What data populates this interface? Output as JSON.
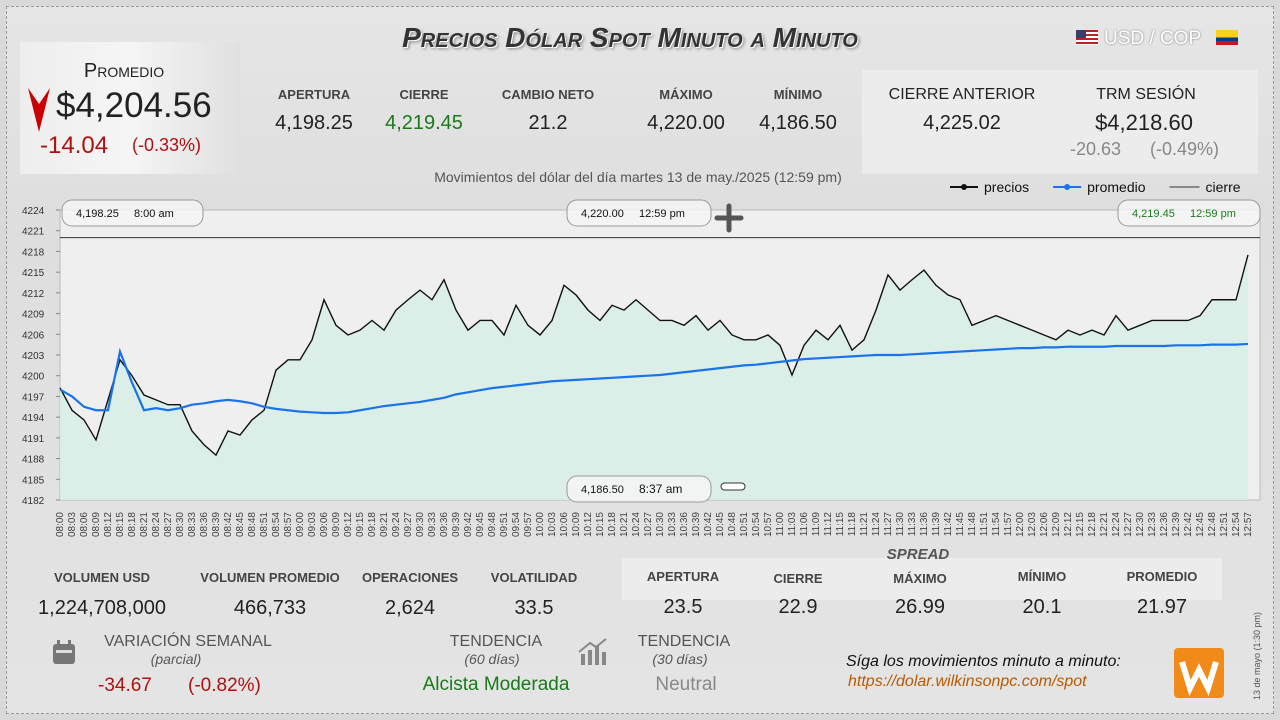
{
  "header": {
    "title": "Precios Dólar Spot Minuto a Minuto",
    "pair": "USD / COP"
  },
  "promedio": {
    "label": "Promedio",
    "value": "$4,204.56",
    "change": "-14.04",
    "change_pct": "(-0.33%)"
  },
  "stats": [
    {
      "label": "APERTURA",
      "value": "4,198.25"
    },
    {
      "label": "CIERRE",
      "value": "4,219.45"
    },
    {
      "label": "CAMBIO NETO",
      "value": "21.2"
    },
    {
      "label": "MÁXIMO",
      "value": "4,220.00"
    },
    {
      "label": "MÍNIMO",
      "value": "4,186.50"
    }
  ],
  "previous": {
    "label": "CIERRE ANTERIOR",
    "value": "4,225.02"
  },
  "trm": {
    "label": "TRM SESIÓN",
    "value": "$4,218.60",
    "change": "-20.63",
    "change_pct": "(-0.49%)"
  },
  "chart_data": {
    "type": "line",
    "title": "Movimientos del dólar del día martes 13 de may./2025 (12:59 pm)",
    "x": [
      "08:00",
      "08:03",
      "08:06",
      "08:09",
      "08:12",
      "08:15",
      "08:18",
      "08:21",
      "08:24",
      "08:27",
      "08:30",
      "08:33",
      "08:36",
      "08:39",
      "08:42",
      "08:45",
      "08:48",
      "08:51",
      "08:54",
      "08:57",
      "09:00",
      "09:03",
      "09:06",
      "09:09",
      "09:12",
      "09:15",
      "09:18",
      "09:21",
      "09:24",
      "09:27",
      "09:30",
      "09:33",
      "09:36",
      "09:39",
      "09:42",
      "09:45",
      "09:48",
      "09:51",
      "09:54",
      "09:57",
      "10:00",
      "10:03",
      "10:06",
      "10:09",
      "10:12",
      "10:15",
      "10:18",
      "10:21",
      "10:24",
      "10:27",
      "10:30",
      "10:33",
      "10:36",
      "10:39",
      "10:42",
      "10:45",
      "10:48",
      "10:51",
      "10:54",
      "10:57",
      "11:00",
      "11:03",
      "11:06",
      "11:09",
      "11:12",
      "11:15",
      "11:18",
      "11:21",
      "11:24",
      "11:27",
      "11:30",
      "11:33",
      "11:36",
      "11:39",
      "11:42",
      "11:45",
      "11:48",
      "11:51",
      "11:54",
      "11:57",
      "12:00",
      "12:03",
      "12:06",
      "12:09",
      "12:12",
      "12:15",
      "12:18",
      "12:21",
      "12:24",
      "12:27",
      "12:30",
      "12:33",
      "12:36",
      "12:39",
      "12:42",
      "12:45",
      "12:48",
      "12:51",
      "12:54",
      "12:57"
    ],
    "series": [
      {
        "name": "precios",
        "color": "#111111",
        "values": [
          4198.25,
          4195,
          4193.6,
          4190.7,
          4196.5,
          4202.3,
          4200,
          4197.2,
          4196.5,
          4195.8,
          4195.8,
          4192,
          4190,
          4188.5,
          4192,
          4191.4,
          4193.6,
          4195,
          4200.8,
          4202.3,
          4202.3,
          4205.2,
          4211,
          4207.3,
          4205.9,
          4206.6,
          4208,
          4206.6,
          4209.5,
          4211,
          4212.4,
          4211,
          4213.9,
          4209.5,
          4206.6,
          4208,
          4208,
          4205.9,
          4210.2,
          4207.3,
          4205.9,
          4208,
          4213.1,
          4211.7,
          4209.5,
          4208,
          4210.2,
          4209.5,
          4211,
          4209.5,
          4208,
          4208,
          4207.3,
          4208.7,
          4206.6,
          4208,
          4205.9,
          4205.2,
          4205.2,
          4205.9,
          4204.4,
          4200.1,
          4204.4,
          4206.6,
          4205.2,
          4207.3,
          4203.7,
          4205.2,
          4209.5,
          4214.6,
          4212.4,
          4213.9,
          4215.3,
          4213.1,
          4211.7,
          4211,
          4207.3,
          4208,
          4208.7,
          4208,
          4207.3,
          4206.6,
          4205.9,
          4205.2,
          4206.6,
          4205.9,
          4206.6,
          4205.9,
          4208.7,
          4206.6,
          4207.3,
          4208,
          4208,
          4208,
          4208,
          4208.7,
          4211,
          4211,
          4211,
          4217.5
        ]
      },
      {
        "name": "promedio",
        "color": "#1a73e8",
        "values": [
          4198,
          4197,
          4195.5,
          4195,
          4195,
          4203.5,
          4199,
          4195,
          4195.3,
          4195,
          4195.3,
          4195.8,
          4196,
          4196.3,
          4196.5,
          4196.3,
          4196,
          4195.5,
          4195.2,
          4195,
          4194.8,
          4194.7,
          4194.6,
          4194.6,
          4194.7,
          4195,
          4195.3,
          4195.6,
          4195.8,
          4196,
          4196.2,
          4196.5,
          4196.8,
          4197.3,
          4197.6,
          4197.9,
          4198.2,
          4198.4,
          4198.6,
          4198.8,
          4199,
          4199.2,
          4199.3,
          4199.4,
          4199.5,
          4199.6,
          4199.7,
          4199.8,
          4199.9,
          4200,
          4200.1,
          4200.3,
          4200.5,
          4200.7,
          4200.9,
          4201.1,
          4201.3,
          4201.5,
          4201.6,
          4201.8,
          4202,
          4202.2,
          4202.4,
          4202.5,
          4202.6,
          4202.7,
          4202.8,
          4202.9,
          4203,
          4203,
          4203,
          4203.1,
          4203.2,
          4203.3,
          4203.4,
          4203.5,
          4203.6,
          4203.7,
          4203.8,
          4203.9,
          4204,
          4204,
          4204.1,
          4204.1,
          4204.2,
          4204.2,
          4204.2,
          4204.2,
          4204.3,
          4204.3,
          4204.3,
          4204.3,
          4204.3,
          4204.4,
          4204.4,
          4204.4,
          4204.5,
          4204.5,
          4204.5,
          4204.6
        ]
      }
    ],
    "reference_line": {
      "name": "cierre",
      "value": 4220,
      "color": "#333333"
    },
    "area_color": "#d6efe6",
    "ylim": [
      4182,
      4224
    ],
    "yticks": [
      4182,
      4185,
      4188,
      4191,
      4194,
      4197,
      4200,
      4203,
      4206,
      4209,
      4212,
      4215,
      4218,
      4221,
      4224
    ],
    "annotations": [
      {
        "price": "4,198.25",
        "time": "8:00 am"
      },
      {
        "price": "4,220.00",
        "time": "12:59 pm"
      },
      {
        "price": "4,219.45",
        "time": "12:59 pm"
      },
      {
        "price": "4,186.50",
        "time": "8:37 am"
      }
    ]
  },
  "volume_stats": [
    {
      "label": "VOLUMEN USD",
      "value": "1,224,708,000"
    },
    {
      "label": "VOLUMEN PROMEDIO",
      "value": "466,733"
    },
    {
      "label": "OPERACIONES",
      "value": "2,624"
    },
    {
      "label": "VOLATILIDAD",
      "value": "33.5"
    }
  ],
  "spread": {
    "title": "SPREAD",
    "items": [
      {
        "label": "APERTURA",
        "value": "23.5"
      },
      {
        "label": "CIERRE",
        "value": "22.9"
      },
      {
        "label": "MÁXIMO",
        "value": "26.99"
      },
      {
        "label": "MÍNIMO",
        "value": "20.1"
      },
      {
        "label": "PROMEDIO",
        "value": "21.97"
      }
    ]
  },
  "weekly": {
    "label": "VARIACIÓN SEMANAL",
    "note": "(parcial)",
    "change": "-34.67",
    "change_pct": "(-0.82%)"
  },
  "trend60": {
    "label": "TENDENCIA",
    "note": "(60 días)",
    "value": "Alcista Moderada"
  },
  "trend30": {
    "label": "TENDENCIA",
    "note": "(30 días)",
    "value": "Neutral"
  },
  "footer": {
    "text": "Síga los movimientos minuto a minuto:",
    "url": "https://dolar.wilkinsonpc.com/spot",
    "stamp": "13 de mayo (1:30 pm)"
  }
}
